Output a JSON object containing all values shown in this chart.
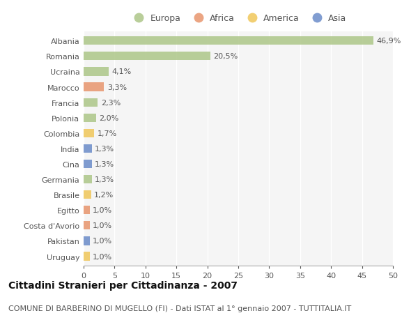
{
  "countries": [
    "Albania",
    "Romania",
    "Ucraina",
    "Marocco",
    "Francia",
    "Polonia",
    "Colombia",
    "India",
    "Cina",
    "Germania",
    "Brasile",
    "Egitto",
    "Costa d'Avorio",
    "Pakistan",
    "Uruguay"
  ],
  "values": [
    46.9,
    20.5,
    4.1,
    3.3,
    2.3,
    2.0,
    1.7,
    1.3,
    1.3,
    1.3,
    1.2,
    1.0,
    1.0,
    1.0,
    1.0
  ],
  "labels": [
    "46,9%",
    "20,5%",
    "4,1%",
    "3,3%",
    "2,3%",
    "2,0%",
    "1,7%",
    "1,3%",
    "1,3%",
    "1,3%",
    "1,2%",
    "1,0%",
    "1,0%",
    "1,0%",
    "1,0%"
  ],
  "continents": [
    "Europa",
    "Europa",
    "Europa",
    "Africa",
    "Europa",
    "Europa",
    "America",
    "Asia",
    "Asia",
    "Europa",
    "America",
    "Africa",
    "Africa",
    "Asia",
    "America"
  ],
  "continent_colors": {
    "Europa": "#adc688",
    "Africa": "#e8956d",
    "America": "#f0c75a",
    "Asia": "#6b8cc9"
  },
  "legend_order": [
    "Europa",
    "Africa",
    "America",
    "Asia"
  ],
  "title": "Cittadini Stranieri per Cittadinanza - 2007",
  "subtitle": "COMUNE DI BARBERINO DI MUGELLO (FI) - Dati ISTAT al 1° gennaio 2007 - TUTTITALIA.IT",
  "xlim": [
    0,
    50
  ],
  "xticks": [
    0,
    5,
    10,
    15,
    20,
    25,
    30,
    35,
    40,
    45,
    50
  ],
  "background_color": "#ffffff",
  "plot_bg_color": "#f5f5f5",
  "grid_color": "#ffffff",
  "bar_height": 0.55,
  "label_fontsize": 8,
  "title_fontsize": 10,
  "subtitle_fontsize": 8,
  "tick_fontsize": 8,
  "legend_fontsize": 9
}
